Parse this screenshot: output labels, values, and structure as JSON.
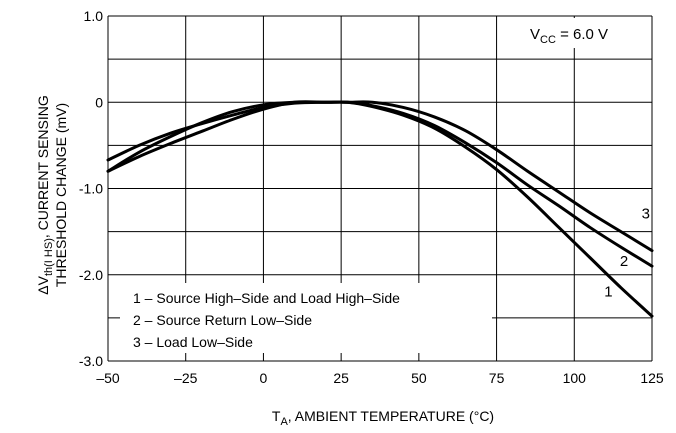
{
  "chart_data": {
    "type": "line",
    "xlabel": {
      "main": "T",
      "sub": "A",
      "rest": ", AMBIENT TEMPERATURE (°C)"
    },
    "ylabel": {
      "line1_prefix": "ΔV",
      "line1_sub": "th(I HS)",
      "line1_rest": ", CURRENT SENSING",
      "line2": "THRESHOLD CHANGE (mV)"
    },
    "xlim": [
      -50,
      125
    ],
    "ylim": [
      -3.0,
      1.0
    ],
    "x_ticks": [
      -50,
      -25,
      0,
      25,
      50,
      75,
      100,
      125
    ],
    "x_tick_labels": [
      "–50",
      "–25",
      "0",
      "25",
      "50",
      "75",
      "100",
      "125"
    ],
    "y_ticks": [
      1.0,
      0,
      -1.0,
      -2.0,
      -3.0
    ],
    "y_tick_labels": [
      "1.0",
      "0",
      "-1.0",
      "-2.0",
      "-3.0"
    ],
    "grid": true,
    "annotation": {
      "prefix": "V",
      "sub": "CC",
      "rest": " = 6.0 V"
    },
    "legend": {
      "placement": "bottom-left",
      "entries": [
        "1 – Source High–Side and Load High–Side",
        "2 – Source Return Low–Side",
        "3 – Load Low–Side"
      ]
    },
    "series": [
      {
        "label": "1",
        "x": [
          -50,
          -40,
          -30,
          -20,
          -10,
          0,
          10,
          20,
          27,
          35,
          45,
          55,
          65,
          75,
          85,
          95,
          105,
          115,
          125
        ],
        "y": [
          -0.8,
          -0.58,
          -0.4,
          -0.24,
          -0.11,
          -0.03,
          0.0,
          0.0,
          0.0,
          -0.05,
          -0.15,
          -0.3,
          -0.52,
          -0.78,
          -1.1,
          -1.45,
          -1.8,
          -2.15,
          -2.48
        ]
      },
      {
        "label": "2",
        "x": [
          -50,
          -40,
          -30,
          -20,
          -10,
          0,
          10,
          20,
          27,
          35,
          45,
          55,
          65,
          75,
          85,
          95,
          105,
          115,
          125
        ],
        "y": [
          -0.8,
          -0.63,
          -0.48,
          -0.34,
          -0.2,
          -0.08,
          0.0,
          0.0,
          0.0,
          -0.04,
          -0.13,
          -0.27,
          -0.47,
          -0.7,
          -0.96,
          -1.2,
          -1.45,
          -1.68,
          -1.9
        ]
      },
      {
        "label": "3",
        "x": [
          -50,
          -40,
          -30,
          -20,
          -10,
          0,
          10,
          20,
          27,
          35,
          45,
          55,
          65,
          75,
          85,
          95,
          105,
          115,
          125
        ],
        "y": [
          -0.67,
          -0.5,
          -0.36,
          -0.25,
          -0.15,
          -0.06,
          -0.01,
          0.0,
          0.0,
          0.0,
          -0.06,
          -0.17,
          -0.33,
          -0.55,
          -0.8,
          -1.04,
          -1.28,
          -1.5,
          -1.72
        ]
      }
    ],
    "curve_labels": [
      {
        "text": "3",
        "x": 123,
        "y": -1.35
      },
      {
        "text": "2",
        "x": 116,
        "y": -1.9
      },
      {
        "text": "1",
        "x": 111,
        "y": -2.25
      }
    ]
  }
}
